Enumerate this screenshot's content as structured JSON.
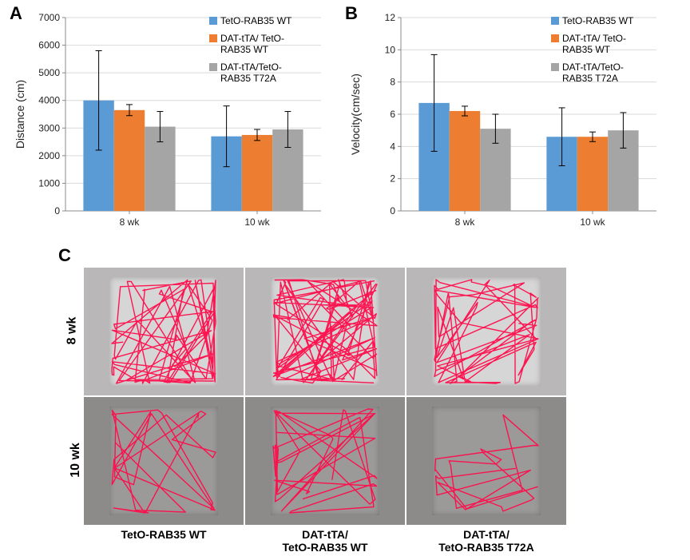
{
  "colors": {
    "series1": "#5b9bd5",
    "series2": "#ed7d31",
    "series3": "#a5a5a5",
    "gridline": "#d9d9d9",
    "axis": "#888888",
    "text": "#222222",
    "track": "#ff0b4a",
    "arena_bg_top": "#b9b7b7",
    "arena_box_top": "#d6d6d6",
    "arena_bg_bot": "#8d8b8a",
    "arena_box_bot": "#9c9a99"
  },
  "chartA": {
    "panel_label": "A",
    "panel_fontsize": 22,
    "type": "bar",
    "xlabels": [
      "8 wk",
      "10 wk"
    ],
    "ylabel": "Distance (cm)",
    "ylabel_fontsize": 14,
    "ylim": [
      0,
      7000
    ],
    "ytick_step": 1000,
    "tick_fontsize": 12,
    "bar_width": 0.24,
    "series": [
      {
        "name": "TetO-RAB35 WT",
        "colorkey": "series1"
      },
      {
        "name": "DAT-tTA/ TetO-RAB35 WT",
        "colorkey": "series2"
      },
      {
        "name": "DAT-tTA/TetO-RAB35 T72A",
        "colorkey": "series3"
      }
    ],
    "groups": [
      {
        "values": [
          4000,
          3650,
          3050
        ],
        "err": [
          1800,
          200,
          550
        ]
      },
      {
        "values": [
          2700,
          2750,
          2950
        ],
        "err": [
          1100,
          200,
          650
        ]
      }
    ]
  },
  "chartB": {
    "panel_label": "B",
    "panel_fontsize": 22,
    "type": "bar",
    "xlabels": [
      "8 wk",
      "10 wk"
    ],
    "ylabel": "Velocity(cm/sec)",
    "ylabel_fontsize": 14,
    "ylim": [
      0,
      12
    ],
    "ytick_step": 2,
    "tick_fontsize": 12,
    "bar_width": 0.24,
    "series": [
      {
        "name": "TetO-RAB35 WT",
        "colorkey": "series1"
      },
      {
        "name": "DAT-tTA/ TetO-RAB35 WT",
        "colorkey": "series2"
      },
      {
        "name": "DAT-tTA/TetO-RAB35 T72A",
        "colorkey": "series3"
      }
    ],
    "groups": [
      {
        "values": [
          6.7,
          6.2,
          5.1
        ],
        "err": [
          3.0,
          0.3,
          0.9
        ]
      },
      {
        "values": [
          4.6,
          4.6,
          5.0
        ],
        "err": [
          1.8,
          0.3,
          1.1
        ]
      }
    ]
  },
  "panelC": {
    "panel_label": "C",
    "panel_fontsize": 22,
    "row_labels": [
      "8 wk",
      "10 wk"
    ],
    "col_labels": [
      "TetO-RAB35 WT",
      "DAT-tTA/\nTetO-RAB35 WT",
      "DAT-tTA/\nTetO-RAB35 T72A"
    ],
    "track_stroke_width": 1.4,
    "density": [
      [
        55,
        80,
        45
      ],
      [
        25,
        30,
        18
      ]
    ]
  }
}
